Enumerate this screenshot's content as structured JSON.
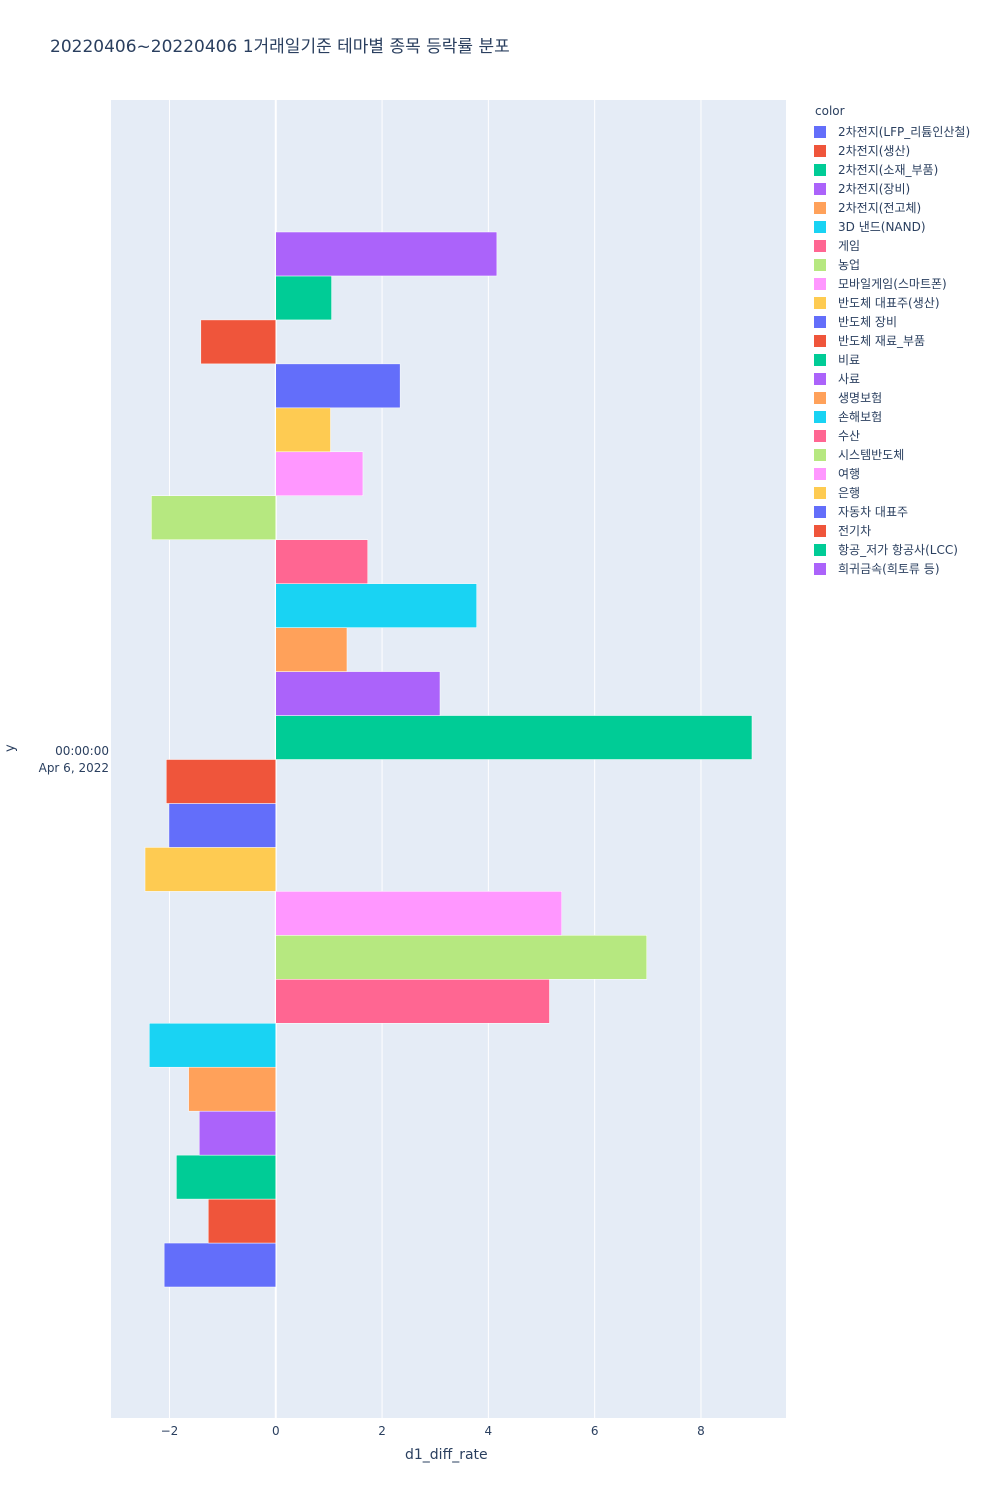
{
  "chart_data": {
    "type": "bar",
    "orientation": "horizontal",
    "barmode": "group",
    "title": "20220406~20220406 1거래일기준 테마별 종목 등락률 분포",
    "xlabel": "d1_diff_rate",
    "ylabel": "y",
    "y_tick_line1": "00:00:00",
    "y_tick_line2": "Apr 6, 2022",
    "xlim": [
      -3.1,
      9.6
    ],
    "xticks": [
      -2,
      0,
      2,
      4,
      6,
      8
    ],
    "xtick_labels": [
      "−2",
      "0",
      "2",
      "4",
      "6",
      "8"
    ],
    "legend_title": "color",
    "series": [
      {
        "name": "2차전지(LFP_리튬인산철)",
        "value": -2.1,
        "color": "#636efa"
      },
      {
        "name": "2차전지(생산)",
        "value": -1.27,
        "color": "#EF553B"
      },
      {
        "name": "2차전지(소재_부품)",
        "value": -1.87,
        "color": "#00cc96"
      },
      {
        "name": "2차전지(장비)",
        "value": -1.44,
        "color": "#ab63fa"
      },
      {
        "name": "2차전지(전고체)",
        "value": -1.64,
        "color": "#FFA15A"
      },
      {
        "name": "3D 낸드(NAND)",
        "value": -2.38,
        "color": "#19d3f3"
      },
      {
        "name": "게임",
        "value": 5.15,
        "color": "#FF6692"
      },
      {
        "name": "농업",
        "value": 6.98,
        "color": "#B6E880"
      },
      {
        "name": "모바일게임(스마트폰)",
        "value": 5.38,
        "color": "#FF97FF"
      },
      {
        "name": "반도체 대표주(생산)",
        "value": -2.46,
        "color": "#FECB52"
      },
      {
        "name": "반도체 장비",
        "value": -2.01,
        "color": "#636efa"
      },
      {
        "name": "반도체 재료_부품",
        "value": -2.06,
        "color": "#EF553B"
      },
      {
        "name": "비료",
        "value": 8.96,
        "color": "#00cc96"
      },
      {
        "name": "사료",
        "value": 3.09,
        "color": "#ab63fa"
      },
      {
        "name": "생명보험",
        "value": 1.34,
        "color": "#FFA15A"
      },
      {
        "name": "손해보험",
        "value": 3.78,
        "color": "#19d3f3"
      },
      {
        "name": "수산",
        "value": 1.73,
        "color": "#FF6692"
      },
      {
        "name": "시스템반도체",
        "value": -2.34,
        "color": "#B6E880"
      },
      {
        "name": "여행",
        "value": 1.64,
        "color": "#FF97FF"
      },
      {
        "name": "은행",
        "value": 1.03,
        "color": "#FECB52"
      },
      {
        "name": "자동차 대표주",
        "value": 2.34,
        "color": "#636efa"
      },
      {
        "name": "전기차",
        "value": -1.41,
        "color": "#EF553B"
      },
      {
        "name": "항공_저가 항공사(LCC)",
        "value": 1.05,
        "color": "#00cc96"
      },
      {
        "name": "희귀금속(희토류 등)",
        "value": 4.16,
        "color": "#ab63fa"
      }
    ]
  },
  "colors": {
    "plot_bg": "#E5ECF6",
    "grid": "#ffffff",
    "text": "#2a3f5f"
  }
}
